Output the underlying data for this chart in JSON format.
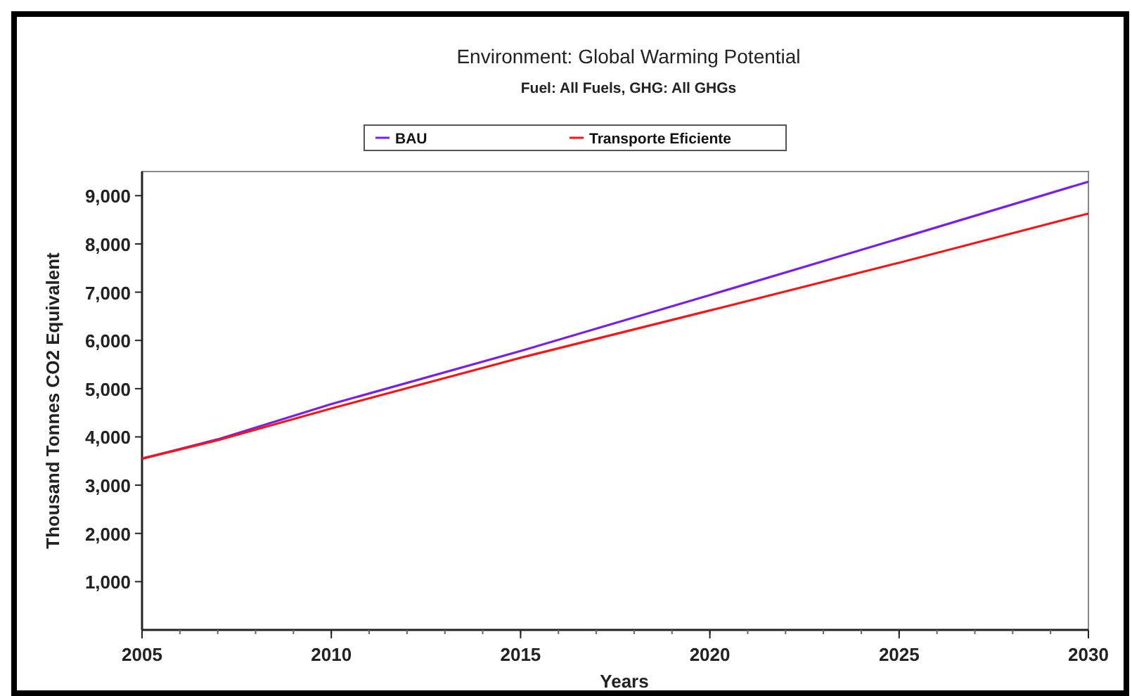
{
  "chart_data": {
    "type": "line",
    "title": "Environment: Global Warming Potential",
    "subtitle": "Fuel: All Fuels, GHG: All GHGs",
    "xlabel": "Years",
    "ylabel": "Thousand Tonnes CO2 Equivalent",
    "x": [
      2005,
      2007,
      2010,
      2015,
      2020,
      2025,
      2030
    ],
    "series": [
      {
        "name": "BAU",
        "color": "#7b1fe0",
        "values": [
          3550,
          3950,
          4680,
          5780,
          6940,
          8110,
          9290
        ]
      },
      {
        "name": "Transporte Eficiente",
        "color": "#f01818",
        "values": [
          3550,
          3930,
          4590,
          5640,
          6620,
          7610,
          8630
        ]
      }
    ],
    "xlim": [
      2005,
      2030
    ],
    "xticks": [
      2005,
      2010,
      2015,
      2020,
      2025,
      2030
    ],
    "ylim": [
      0,
      9500
    ],
    "yticks": [
      {
        "value": 1000,
        "label": "1,000"
      },
      {
        "value": 2000,
        "label": "2,000"
      },
      {
        "value": 3000,
        "label": "3,000"
      },
      {
        "value": 4000,
        "label": "4,000"
      },
      {
        "value": 5000,
        "label": "5,000"
      },
      {
        "value": 6000,
        "label": "6,000"
      },
      {
        "value": 7000,
        "label": "7,000"
      },
      {
        "value": 8000,
        "label": "8,000"
      },
      {
        "value": 9000,
        "label": "9,000"
      }
    ],
    "grid": false,
    "legend": "top",
    "marker": "none",
    "line_style": "solid"
  }
}
